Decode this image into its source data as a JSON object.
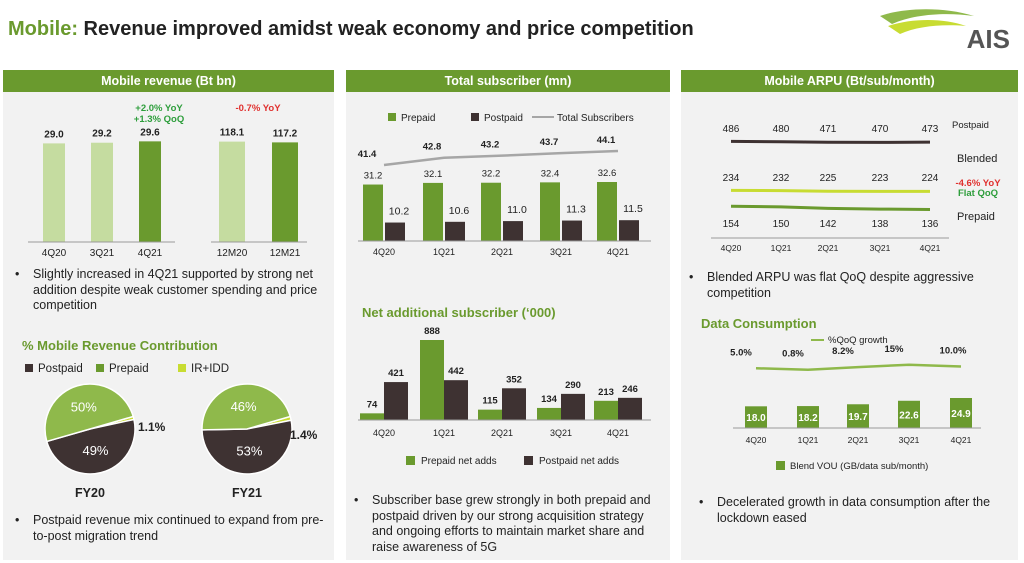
{
  "page": {
    "title_highlight": "Mobile:",
    "title_rest": " Revenue improved amidst weak economy and price competition",
    "logo_text": "AIS"
  },
  "colors": {
    "dark_green": "#6a9a2e",
    "mid_green": "#8fb94b",
    "light_green": "#c5dca0",
    "dark_brown": "#3e3232",
    "lime": "#c8dc32",
    "gray_line": "#a6a6a6",
    "red": "#e0312f",
    "green_text": "#2e9e3c"
  },
  "panels": {
    "revenue": {
      "header": "Mobile revenue (Bt bn)",
      "annotation_q_yoy": "+2.0% YoY",
      "annotation_q_qoq": "+1.3% QoQ",
      "annotation_y_yoy": "-0.7% YoY",
      "bullet": "Slightly increased in 4Q21 supported by strong net addition despite weak customer spending and price competition",
      "contribution_title": "% Mobile Revenue Contribution",
      "legend": [
        "Postpaid",
        "Prepaid",
        "IR+IDD"
      ],
      "bullet2": "Postpaid revenue mix continued to expand from pre-to-post migration trend"
    },
    "subscriber": {
      "header": "Total subscriber (mn)",
      "net_add_title": "Net additional  subscriber (‘000)",
      "bullet": "Subscriber base grew strongly in both prepaid and postpaid driven by our strong acquisition strategy and ongoing efforts to maintain market share and raise awareness of 5G"
    },
    "arpu": {
      "header": "Mobile ARPU  (Bt/sub/month)",
      "bullet": "Blended ARPU was flat QoQ despite aggressive competition",
      "data_title": "Data Consumption",
      "bullet2": "Decelerated growth in data consumption after the lockdown eased"
    }
  },
  "chart_data": [
    {
      "type": "bar",
      "title": "Mobile revenue (Bt bn)",
      "categories": [
        "4Q20",
        "3Q21",
        "4Q21"
      ],
      "values": [
        29.0,
        29.2,
        29.6
      ],
      "labels": [
        "29.0",
        "29.2",
        "29.6"
      ]
    },
    {
      "type": "bar",
      "title": "Mobile revenue (Bt bn)",
      "categories": [
        "12M20",
        "12M21"
      ],
      "values": [
        118.1,
        117.2
      ],
      "labels": [
        "118.1",
        "117.2"
      ]
    },
    {
      "type": "pie",
      "title": "FY20",
      "series": [
        {
          "name": "Prepaid",
          "value": 50,
          "label": "50%"
        },
        {
          "name": "Postpaid",
          "value": 49,
          "label": "49%"
        },
        {
          "name": "IR+IDD",
          "value": 1.1,
          "label": "1.1%"
        }
      ]
    },
    {
      "type": "pie",
      "title": "FY21",
      "series": [
        {
          "name": "Prepaid",
          "value": 46,
          "label": "46%"
        },
        {
          "name": "Postpaid",
          "value": 53,
          "label": "53%"
        },
        {
          "name": "IR+IDD",
          "value": 1.4,
          "label": "1.4%"
        }
      ]
    },
    {
      "type": "bar",
      "title": "Total subscriber (mn)",
      "categories": [
        "4Q20",
        "1Q21",
        "2Q21",
        "3Q21",
        "4Q21"
      ],
      "series": [
        {
          "name": "Prepaid",
          "values": [
            31.2,
            32.1,
            32.2,
            32.4,
            32.6
          ],
          "labels": [
            "31.2",
            "32.1",
            "32.2",
            "32.4",
            "32.6"
          ]
        },
        {
          "name": "Postpaid",
          "values": [
            10.2,
            10.6,
            11.0,
            11.3,
            11.5
          ],
          "labels": [
            "10.2",
            "10.6",
            "11.0",
            "11.3",
            "11.5"
          ]
        },
        {
          "name": "Total Subscribers",
          "type": "line",
          "values": [
            41.4,
            42.8,
            43.2,
            43.7,
            44.1
          ],
          "labels": [
            "41.4",
            "42.8",
            "43.2",
            "43.7",
            "44.1"
          ]
        }
      ]
    },
    {
      "type": "bar",
      "title": "Net additional  subscriber (‘000)",
      "categories": [
        "4Q20",
        "1Q21",
        "2Q21",
        "3Q21",
        "4Q21"
      ],
      "series": [
        {
          "name": "Prepaid net adds",
          "values": [
            74,
            888,
            115,
            134,
            213
          ],
          "labels": [
            "74",
            "888",
            "115",
            "134",
            "213"
          ]
        },
        {
          "name": "Postpaid net adds",
          "values": [
            421,
            442,
            352,
            290,
            246
          ],
          "labels": [
            "421",
            "442",
            "352",
            "290",
            "246"
          ]
        }
      ]
    },
    {
      "type": "line",
      "title": "Mobile ARPU  (Bt/sub/month)",
      "categories": [
        "4Q20",
        "1Q21",
        "2Q21",
        "3Q21",
        "4Q21"
      ],
      "series": [
        {
          "name": "Postpaid",
          "values": [
            486,
            480,
            471,
            470,
            473
          ],
          "labels": [
            "486",
            "480",
            "471",
            "470",
            "473"
          ]
        },
        {
          "name": "Blended",
          "values": [
            234,
            232,
            225,
            223,
            224
          ],
          "labels": [
            "234",
            "232",
            "225",
            "223",
            "224"
          ]
        },
        {
          "name": "Prepaid",
          "values": [
            154,
            150,
            142,
            138,
            136
          ],
          "labels": [
            "154",
            "150",
            "142",
            "138",
            "136"
          ]
        }
      ],
      "annotations": [
        "-4.6% YoY",
        "Flat QoQ"
      ]
    },
    {
      "type": "bar",
      "title": "Data Consumption",
      "categories": [
        "4Q20",
        "1Q21",
        "2Q21",
        "3Q21",
        "4Q21"
      ],
      "series": [
        {
          "name": "Blend VOU (GB/data sub/month)",
          "values": [
            18.0,
            18.2,
            19.7,
            22.6,
            24.9
          ],
          "labels": [
            "18.0",
            "18.2",
            "19.7",
            "22.6",
            "24.9"
          ]
        },
        {
          "name": "%QoQ growth",
          "type": "line",
          "values": [
            5.0,
            0.8,
            8.2,
            15,
            10.0
          ],
          "labels": [
            "5.0%",
            "0.8%",
            "8.2%",
            "15%",
            "10.0%"
          ]
        }
      ]
    }
  ]
}
